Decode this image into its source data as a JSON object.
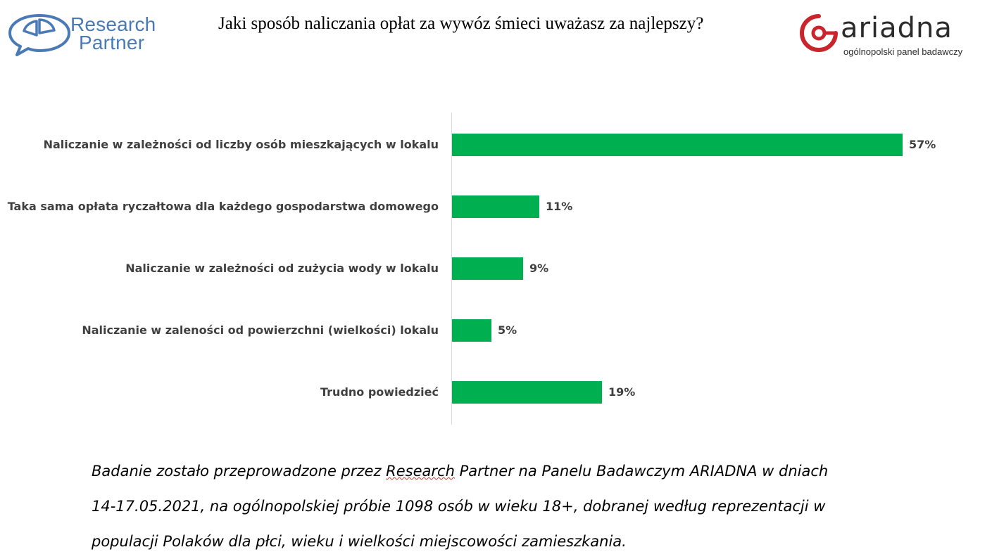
{
  "header": {
    "title": "Jaki sposób naliczania opłat za wywóz śmieci uważasz za najlepszy?",
    "logo_left": {
      "line1": "Research",
      "line2": "Partner",
      "color": "#4a7ab5"
    },
    "logo_right": {
      "word": "ariadna",
      "subtitle": "ogólnopolski panel badawczy",
      "accent": "#c9252c"
    }
  },
  "chart_data": {
    "type": "bar",
    "orientation": "horizontal",
    "title": "Jaki sposób naliczania opłat za wywóz śmieci uważasz za najlepszy?",
    "categories": [
      "Naliczanie w zależności od liczby osób mieszkających w lokalu",
      "Taka sama opłata ryczałtowa dla każdego gospodarstwa domowego",
      "Naliczanie w zależności od zużycia wody w lokalu",
      "Naliczanie w zaleności od powierzchni (wielkości) lokalu",
      "Trudno powiedzieć"
    ],
    "values": [
      57,
      11,
      9,
      5,
      19
    ],
    "value_labels": [
      "57%",
      "11%",
      "9%",
      "5%",
      "19%"
    ],
    "unit": "%",
    "xlim": [
      0,
      60
    ],
    "bar_color": "#00b050",
    "grid": false,
    "legend": "none"
  },
  "footnote": {
    "line1_prefix": "Badanie zostało przeprowadzone przez ",
    "line1_underlined": "Research",
    "line1_suffix": " Partner na Panelu Badawczym ARIADNA w dniach",
    "line2": "14-17.05.2021, na ogólnopolskiej próbie 1098 osób w wieku 18+, dobranej według reprezentacji w",
    "line3": "populacji Polaków dla płci, wieku i wielkości miejscowości zamieszkania."
  }
}
